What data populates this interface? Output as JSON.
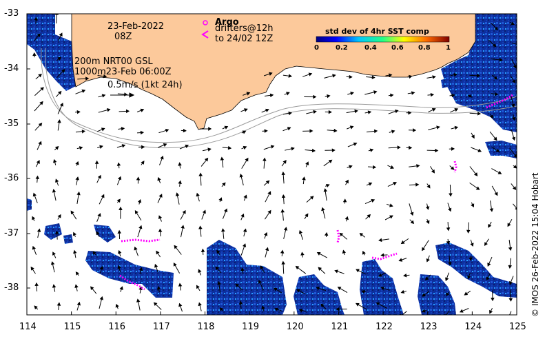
{
  "map": {
    "date_line1": "23-Feb-2022",
    "date_line2": "08Z",
    "legend_line1": "200m  NRT00 GSL",
    "legend_line2": "1000m23-Feb 06:00Z",
    "vector_scale_label": "0.5m/s (1kt 24h)",
    "argo_label": "Argo",
    "drifters_line1": "drifters@12h",
    "drifters_line2": "to 24/02 12Z",
    "credit": "© IMOS 26-Feb-2022 15:04 Hobart"
  },
  "colorbar": {
    "title": "std dev of 4hr SST comp",
    "ticks": [
      "0",
      "0.2",
      "0.4",
      "0.6",
      "0.8",
      "1"
    ]
  },
  "axes": {
    "x_ticks": [
      "114",
      "115",
      "116",
      "117",
      "118",
      "119",
      "120",
      "121",
      "122",
      "123",
      "124",
      "125"
    ],
    "y_ticks": [
      "-33",
      "-34",
      "-35",
      "-36",
      "-37",
      "-38"
    ]
  },
  "colors": {
    "land": "#fcc99b",
    "sst_dark": "#0b2a8c",
    "drifter": "#ff00ff"
  }
}
